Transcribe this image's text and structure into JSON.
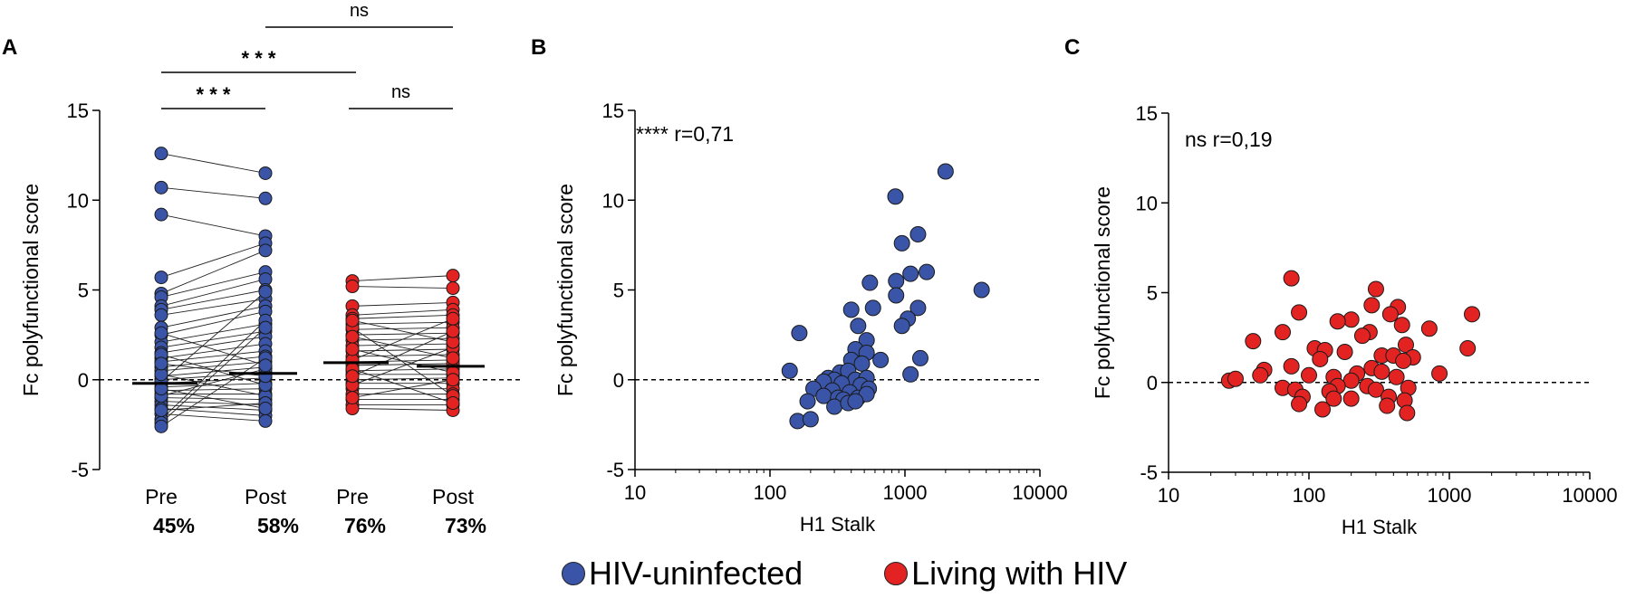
{
  "chart_data": [
    {
      "panel": "A",
      "type": "scatter",
      "title": "",
      "ylabel": "Fc polyfunctional score",
      "ylim": [
        -5,
        15
      ],
      "yticks": [
        -5,
        0,
        5,
        10,
        15
      ],
      "reference_line_y": 0,
      "categories": [
        "Pre",
        "Post",
        "Pre",
        "Post"
      ],
      "percentages": [
        "45%",
        "58%",
        "76%",
        "73%"
      ],
      "groups": [
        {
          "name": "HIV-uninfected",
          "color": "#3a55a8",
          "pre_median": -0.2,
          "post_median": 0.35,
          "pairs": [
            [
              12.6,
              11.5
            ],
            [
              10.7,
              10.1
            ],
            [
              9.2,
              8.0
            ],
            [
              5.7,
              7.6
            ],
            [
              4.8,
              7.2
            ],
            [
              4.6,
              6.0
            ],
            [
              4.1,
              5.6
            ],
            [
              3.9,
              5.0
            ],
            [
              3.6,
              4.5
            ],
            [
              2.9,
              4.1
            ],
            [
              2.5,
              3.8
            ],
            [
              2.1,
              3.1
            ],
            [
              1.8,
              2.7
            ],
            [
              1.5,
              2.4
            ],
            [
              1.2,
              2.0
            ],
            [
              1.0,
              1.6
            ],
            [
              0.7,
              1.3
            ],
            [
              0.5,
              1.0
            ],
            [
              0.2,
              0.7
            ],
            [
              0.0,
              0.4
            ],
            [
              -0.2,
              0.1
            ],
            [
              -0.4,
              -0.2
            ],
            [
              -0.6,
              -0.5
            ],
            [
              -0.8,
              -0.8
            ],
            [
              -1.0,
              -1.1
            ],
            [
              -1.2,
              -1.4
            ],
            [
              -1.4,
              -1.7
            ],
            [
              -1.6,
              -2.0
            ],
            [
              -1.9,
              -2.3
            ],
            [
              -2.2,
              3.3
            ],
            [
              -2.4,
              2.9
            ],
            [
              -2.6,
              1.2
            ],
            [
              -0.1,
              4.9
            ],
            [
              0.3,
              -0.9
            ],
            [
              -0.9,
              0.6
            ],
            [
              1.4,
              -0.3
            ],
            [
              -1.7,
              -1.3
            ],
            [
              0.9,
              0.2
            ],
            [
              -0.5,
              -1.6
            ],
            [
              2.6,
              0.8
            ]
          ]
        },
        {
          "name": "Living with HIV",
          "color": "#e32322",
          "pre_median": 0.95,
          "post_median": 0.75,
          "pairs": [
            [
              5.5,
              5.8
            ],
            [
              5.2,
              5.1
            ],
            [
              4.1,
              4.3
            ],
            [
              3.6,
              3.9
            ],
            [
              3.4,
              3.6
            ],
            [
              3.1,
              3.2
            ],
            [
              2.8,
              2.9
            ],
            [
              2.5,
              2.6
            ],
            [
              2.2,
              2.3
            ],
            [
              1.9,
              2.0
            ],
            [
              1.6,
              1.7
            ],
            [
              1.3,
              1.4
            ],
            [
              1.0,
              1.1
            ],
            [
              0.8,
              0.9
            ],
            [
              0.5,
              0.6
            ],
            [
              0.3,
              0.3
            ],
            [
              0.0,
              0.1
            ],
            [
              -0.2,
              -0.2
            ],
            [
              -0.5,
              -0.5
            ],
            [
              -0.8,
              -0.8
            ],
            [
              -1.1,
              -1.1
            ],
            [
              -1.4,
              -1.4
            ],
            [
              -1.6,
              -1.7
            ],
            [
              2.9,
              -0.9
            ],
            [
              1.1,
              3.4
            ],
            [
              -0.3,
              1.8
            ],
            [
              0.6,
              -1.3
            ],
            [
              1.7,
              0.4
            ],
            [
              2.4,
              1.2
            ],
            [
              -1.0,
              0.0
            ],
            [
              3.3,
              2.1
            ],
            [
              0.2,
              2.7
            ]
          ]
        }
      ],
      "significance": [
        {
          "from": 0,
          "to": 1,
          "label": "* * *"
        },
        {
          "from": 0,
          "to": 2,
          "label": "* * *"
        },
        {
          "from": 2,
          "to": 3,
          "label": "ns"
        },
        {
          "from": 1,
          "to": 3,
          "label": "ns"
        }
      ]
    },
    {
      "panel": "B",
      "type": "scatter",
      "xscale": "log",
      "xlabel": "H1 Stalk",
      "ylabel": "Fc polyfunctional score",
      "xlim": [
        10,
        10000
      ],
      "ylim": [
        -5,
        15
      ],
      "xticks": [
        10,
        100,
        1000,
        10000
      ],
      "yticks": [
        -5,
        0,
        5,
        10,
        15
      ],
      "reference_line_y": 0,
      "annotation": "**** r=0,71",
      "color": "#3a55a8",
      "points": [
        [
          2000,
          11.6
        ],
        [
          850,
          10.2
        ],
        [
          1250,
          8.1
        ],
        [
          950,
          7.6
        ],
        [
          1450,
          6.0
        ],
        [
          1100,
          5.9
        ],
        [
          3700,
          5.0
        ],
        [
          860,
          5.5
        ],
        [
          550,
          5.4
        ],
        [
          860,
          4.7
        ],
        [
          1250,
          4.0
        ],
        [
          580,
          4.0
        ],
        [
          400,
          3.9
        ],
        [
          1050,
          3.4
        ],
        [
          950,
          3.0
        ],
        [
          450,
          3.0
        ],
        [
          165,
          2.6
        ],
        [
          520,
          2.2
        ],
        [
          430,
          1.7
        ],
        [
          520,
          1.5
        ],
        [
          660,
          1.1
        ],
        [
          1300,
          1.2
        ],
        [
          400,
          1.1
        ],
        [
          480,
          0.9
        ],
        [
          140,
          0.5
        ],
        [
          1100,
          0.3
        ],
        [
          330,
          0.4
        ],
        [
          380,
          0.5
        ],
        [
          270,
          0.1
        ],
        [
          300,
          0.0
        ],
        [
          430,
          0.0
        ],
        [
          520,
          0.1
        ],
        [
          250,
          -0.1
        ],
        [
          340,
          -0.2
        ],
        [
          470,
          -0.3
        ],
        [
          210,
          -0.5
        ],
        [
          290,
          -0.6
        ],
        [
          390,
          -0.7
        ],
        [
          540,
          -0.5
        ],
        [
          250,
          -0.9
        ],
        [
          320,
          -1.0
        ],
        [
          450,
          -1.0
        ],
        [
          520,
          -0.8
        ],
        [
          350,
          -1.1
        ],
        [
          190,
          -1.2
        ],
        [
          300,
          -1.5
        ],
        [
          380,
          -1.3
        ],
        [
          430,
          -1.2
        ],
        [
          160,
          -2.3
        ],
        [
          200,
          -2.2
        ]
      ]
    },
    {
      "panel": "C",
      "type": "scatter",
      "xscale": "log",
      "xlabel": "H1 Stalk",
      "ylabel": "Fc polyfunctional score",
      "xlim": [
        10,
        10000
      ],
      "ylim": [
        -5,
        15
      ],
      "xticks": [
        10,
        100,
        1000,
        10000
      ],
      "yticks": [
        -5,
        0,
        5,
        10,
        15
      ],
      "reference_line_y": 0,
      "annotation": "ns r=0,19",
      "color": "#e32322",
      "points": [
        [
          75,
          5.8
        ],
        [
          300,
          5.2
        ],
        [
          1450,
          3.8
        ],
        [
          85,
          3.9
        ],
        [
          280,
          4.3
        ],
        [
          430,
          4.2
        ],
        [
          380,
          3.8
        ],
        [
          200,
          3.5
        ],
        [
          460,
          3.2
        ],
        [
          160,
          3.4
        ],
        [
          720,
          3.0
        ],
        [
          65,
          2.8
        ],
        [
          40,
          2.3
        ],
        [
          270,
          2.8
        ],
        [
          240,
          2.6
        ],
        [
          490,
          2.1
        ],
        [
          110,
          1.9
        ],
        [
          130,
          1.8
        ],
        [
          180,
          1.7
        ],
        [
          330,
          1.5
        ],
        [
          400,
          1.5
        ],
        [
          550,
          1.4
        ],
        [
          1350,
          1.9
        ],
        [
          120,
          1.3
        ],
        [
          470,
          1.2
        ],
        [
          280,
          0.8
        ],
        [
          330,
          0.6
        ],
        [
          220,
          0.5
        ],
        [
          850,
          0.5
        ],
        [
          48,
          0.7
        ],
        [
          45,
          0.4
        ],
        [
          75,
          0.9
        ],
        [
          100,
          0.4
        ],
        [
          150,
          0.3
        ],
        [
          200,
          0.1
        ],
        [
          420,
          0.3
        ],
        [
          27,
          0.1
        ],
        [
          30,
          0.2
        ],
        [
          65,
          -0.3
        ],
        [
          80,
          -0.4
        ],
        [
          160,
          -0.2
        ],
        [
          140,
          -0.5
        ],
        [
          260,
          -0.2
        ],
        [
          300,
          -0.4
        ],
        [
          510,
          -0.3
        ],
        [
          90,
          -0.8
        ],
        [
          150,
          -0.9
        ],
        [
          200,
          -0.9
        ],
        [
          370,
          -0.8
        ],
        [
          480,
          -1.0
        ],
        [
          85,
          -1.2
        ],
        [
          125,
          -1.5
        ],
        [
          360,
          -1.3
        ],
        [
          500,
          -1.7
        ]
      ]
    }
  ],
  "panels": {
    "A": {
      "letter": "A"
    },
    "B": {
      "letter": "B"
    },
    "C": {
      "letter": "C"
    }
  },
  "legend": [
    {
      "label": "HIV-uninfected",
      "color": "#3a55a8"
    },
    {
      "label": "Living with HIV",
      "color": "#e32322"
    }
  ]
}
